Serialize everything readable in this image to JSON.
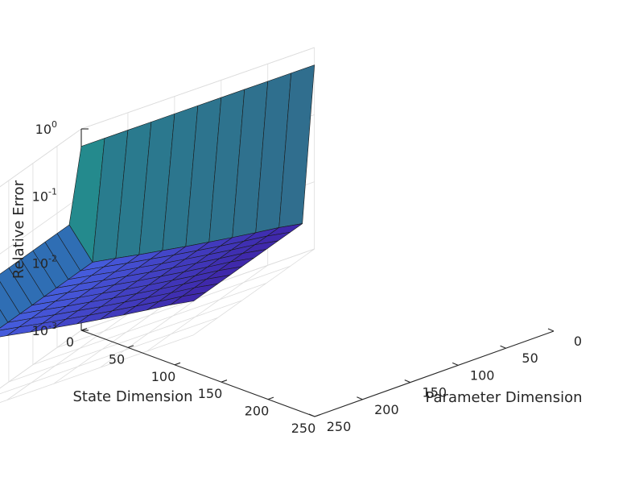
{
  "chart_data": {
    "type": "surface",
    "zscale": "log",
    "xlabel": "State Dimension",
    "ylabel": "Parameter Dimension",
    "zlabel": "Relative Error",
    "xlim": [
      0,
      250
    ],
    "ylim": [
      0,
      250
    ],
    "zlim": [
      0.001,
      1
    ],
    "x_ticks": [
      "0",
      "50",
      "100",
      "150",
      "200",
      "250"
    ],
    "y_ticks": [
      "0",
      "50",
      "100",
      "150",
      "200",
      "250"
    ],
    "z_ticks": [
      {
        "value": 0.001,
        "base": "10",
        "exp": "-3"
      },
      {
        "value": 0.01,
        "base": "10",
        "exp": "-2"
      },
      {
        "value": 0.1,
        "base": "10",
        "exp": "-1"
      },
      {
        "value": 1,
        "base": "10",
        "exp": "0"
      }
    ],
    "grid": true,
    "colormap": "parula",
    "x": [
      0,
      25,
      50,
      75,
      100,
      125,
      150,
      175,
      200,
      225,
      250
    ],
    "y": [
      0,
      25,
      50,
      75,
      100,
      125,
      150,
      175,
      200,
      225,
      250
    ],
    "z": [
      [
        0.55,
        0.55,
        0.55,
        0.55,
        0.55,
        0.55,
        0.55,
        0.55,
        0.55,
        0.55,
        0.55
      ],
      [
        0.05,
        0.0105,
        0.0091,
        0.0078,
        0.0068,
        0.0059,
        0.0052,
        0.0046,
        0.0041,
        0.0037,
        0.0032
      ],
      [
        0.05,
        0.0105,
        0.0091,
        0.0078,
        0.0068,
        0.0059,
        0.0052,
        0.0046,
        0.0041,
        0.0037,
        0.0032
      ],
      [
        0.05,
        0.0105,
        0.0091,
        0.0078,
        0.0068,
        0.0059,
        0.0052,
        0.0046,
        0.0041,
        0.0037,
        0.0032
      ],
      [
        0.05,
        0.0105,
        0.0091,
        0.0078,
        0.0068,
        0.0059,
        0.0052,
        0.0046,
        0.0041,
        0.0037,
        0.0032
      ],
      [
        0.05,
        0.0105,
        0.0091,
        0.0078,
        0.0068,
        0.0059,
        0.0052,
        0.0046,
        0.0041,
        0.0037,
        0.0032
      ],
      [
        0.05,
        0.0105,
        0.0091,
        0.0078,
        0.0068,
        0.0059,
        0.0052,
        0.0046,
        0.0041,
        0.0037,
        0.0032
      ],
      [
        0.05,
        0.0105,
        0.0091,
        0.0078,
        0.0068,
        0.0059,
        0.0052,
        0.0046,
        0.0041,
        0.0037,
        0.0032
      ],
      [
        0.05,
        0.0105,
        0.0091,
        0.0078,
        0.0068,
        0.0059,
        0.0052,
        0.0046,
        0.0041,
        0.0037,
        0.0032
      ],
      [
        0.05,
        0.0105,
        0.0091,
        0.0078,
        0.0068,
        0.0059,
        0.0052,
        0.0046,
        0.0041,
        0.0037,
        0.0032
      ],
      [
        0.05,
        0.0105,
        0.0091,
        0.0078,
        0.0068,
        0.0059,
        0.0052,
        0.0046,
        0.0041,
        0.0037,
        0.0032
      ]
    ]
  }
}
